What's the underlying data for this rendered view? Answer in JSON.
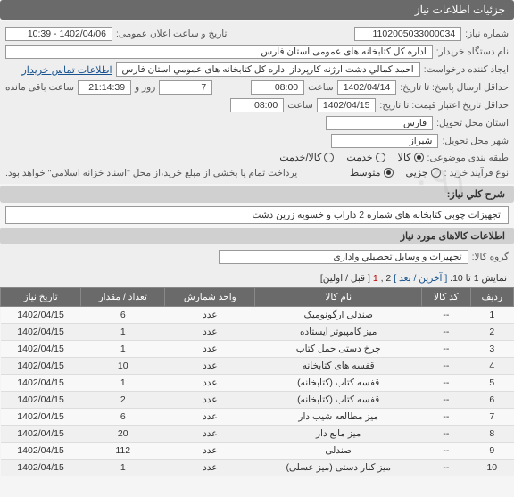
{
  "header": {
    "title": "جزئیات اطلاعات نیاز"
  },
  "form": {
    "need_no_label": "شماره نیاز:",
    "need_no": "1102005033000034",
    "announce_label": "تاریخ و ساعت اعلان عمومی:",
    "announce_val": "1402/04/06 - 10:39",
    "buyer_label": "نام دستگاه خریدار:",
    "buyer_val": "اداره کل کتابخانه های عمومی استان فارس",
    "requester_label": "ایجاد کننده درخواست:",
    "requester_val": "احمد  کمالي دشت ارژنه  کارپرداز اداره کل کتابخانه های عمومي استان فارس",
    "contact_link": "اطلاعات تماس خریدار",
    "deadline_label": "حداقل ارسال پاسخ: تا تاریخ:",
    "deadline_date": "1402/04/14",
    "time_label": "ساعت",
    "deadline_time": "08:00",
    "days_val": "7",
    "days_label": "روز و",
    "remain_time": "21:14:39",
    "remain_label": "ساعت باقی مانده",
    "validity_label": "حداقل تاریخ اعتبار قیمت: تا تاریخ:",
    "validity_date": "1402/04/15",
    "validity_time": "08:00",
    "province_label": "استان محل تحویل:",
    "province_val": "فارس",
    "city_label": "شهر محل تحویل:",
    "city_val": "شیراز",
    "category_label": "طبقه بندی موضوعی:",
    "cat_goods": "کالا",
    "cat_service": "خدمت",
    "cat_both": "کالا/خدمت",
    "purchase_type_label": "نوع فرآیند خرید :",
    "pt_minor": "جزیی",
    "pt_medium": "متوسط",
    "pt_note": "پرداخت تمام یا بخشی از مبلغ خرید،از محل \"اسناد خزانه اسلامی\" خواهد بود."
  },
  "desc_section": {
    "title": "شرح کلي نیاز:",
    "text": "تجهیزات چوبی کتابخانه های شماره 2 داراب و خسویه زرین دشت"
  },
  "items_section": {
    "title": "اطلاعات کالاهای مورد نیاز",
    "group_label": "گروه کالا:",
    "group_val": "تجهیزات و وسایل تحصیلي واداری"
  },
  "pagination": {
    "text_prefix": "نمایش 1 تا 10. ",
    "last": "[ آخرین",
    "next": "/ بعد ]",
    "p2": "2",
    "p1": "1",
    "first": "[ قبل / اولین]"
  },
  "table": {
    "headers": [
      "ردیف",
      "کد کالا",
      "نام کالا",
      "واحد شمارش",
      "تعداد / مقدار",
      "تاریخ نیاز"
    ],
    "rows": [
      [
        "1",
        "--",
        "صندلی ارگونومیک",
        "عدد",
        "6",
        "1402/04/15"
      ],
      [
        "2",
        "--",
        "میز کامپیوتر ایستاده",
        "عدد",
        "1",
        "1402/04/15"
      ],
      [
        "3",
        "--",
        "چرخ دستی حمل کتاب",
        "عدد",
        "1",
        "1402/04/15"
      ],
      [
        "4",
        "--",
        "قفسه های کتابخانه",
        "عدد",
        "10",
        "1402/04/15"
      ],
      [
        "5",
        "--",
        "قفسه کتاب (کتابخانه)",
        "عدد",
        "1",
        "1402/04/15"
      ],
      [
        "6",
        "--",
        "قفسه کتاب (کتابخانه)",
        "عدد",
        "2",
        "1402/04/15"
      ],
      [
        "7",
        "--",
        "میز مطالعه شیب دار",
        "عدد",
        "6",
        "1402/04/15"
      ],
      [
        "8",
        "--",
        "میز مانع دار",
        "عدد",
        "20",
        "1402/04/15"
      ],
      [
        "9",
        "--",
        "صندلی",
        "عدد",
        "112",
        "1402/04/15"
      ],
      [
        "10",
        "--",
        "میز کنار دستی (میز عسلی)",
        "عدد",
        "1",
        "1402/04/15"
      ]
    ]
  },
  "watermark": "۰۹۱"
}
